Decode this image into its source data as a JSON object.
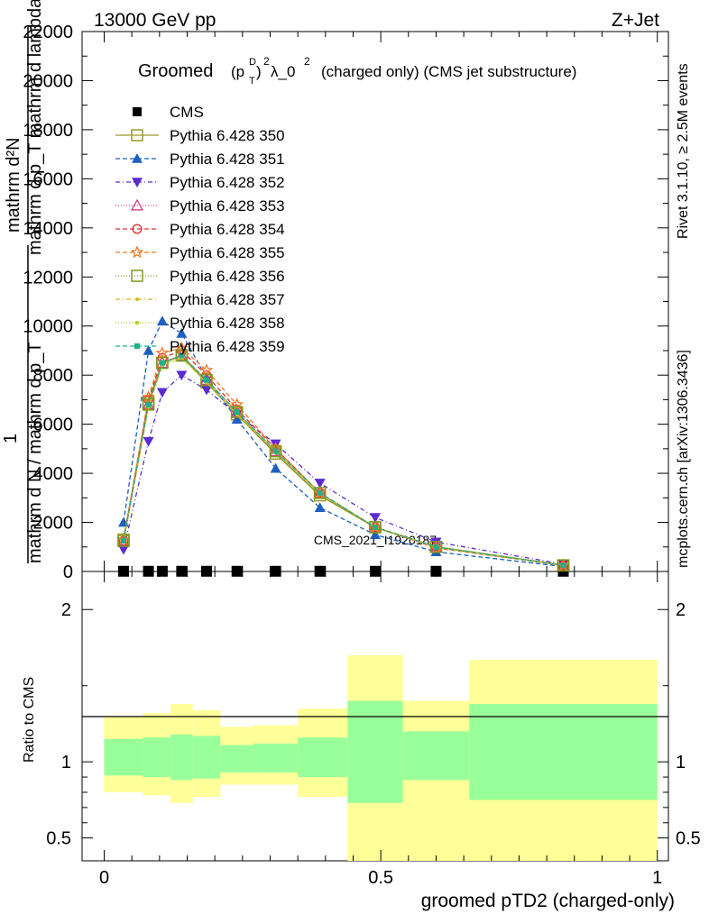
{
  "header": {
    "energy": "13000 GeV pp",
    "process": "Z+Jet"
  },
  "side": {
    "rivet": "Rivet 3.1.10, ≥ 2.5M events",
    "mcplots": "mcplots.cern.ch [arXiv:1306.3436]"
  },
  "title": {
    "prefix": "Groomed",
    "formula": "(p",
    "sup_D": "D",
    "sub_T": "T",
    "close": ")",
    "sq": "2",
    "lambda": "λ_0",
    "lambda_sup": "2",
    "suffix": "(charged only) (CMS jet substructure)"
  },
  "ylabel_main": {
    "line1": "mathrm d²N",
    "line2": "mathrm d p_T mathrm d lambda",
    "one": "1",
    "line3": "mathrm d N / mathrm d p_T"
  },
  "ylabel_ratio": "Ratio to CMS",
  "xlabel": "groomed pTD2 (charged-only)",
  "watermark": "CMS_2021_I1920187",
  "colors": {
    "cms": "#000000",
    "band_inner": "#99ff99",
    "band_outer": "#ffff99"
  },
  "chart_data": [
    {
      "type": "line",
      "panel": "main",
      "xlim": [
        -0.04,
        1.02
      ],
      "ylim": [
        0,
        22000
      ],
      "yticks": [
        2000,
        4000,
        6000,
        8000,
        10000,
        12000,
        14000,
        16000,
        18000,
        20000,
        22000
      ],
      "ytick_labels": [
        "2000",
        "4000",
        "6000",
        "8000",
        "10000",
        "12000",
        "14000",
        "16000",
        "18000",
        "20000",
        "22000"
      ],
      "legend_position": "top-left",
      "x": [
        0.035,
        0.08,
        0.105,
        0.14,
        0.185,
        0.24,
        0.31,
        0.39,
        0.49,
        0.6,
        0.83
      ],
      "series": [
        {
          "name": "CMS",
          "marker": "square",
          "color": "#000000",
          "dash": "",
          "values": [
            8,
            8,
            8,
            8,
            8,
            8,
            8,
            8,
            8,
            8,
            8
          ]
        },
        {
          "name": "Pythia 6.428 350",
          "marker": "open-square",
          "color": "#9a9a2a",
          "dash": "",
          "values": [
            1300,
            6900,
            8500,
            8800,
            7700,
            6400,
            4800,
            3100,
            1800,
            1000,
            250
          ]
        },
        {
          "name": "Pythia 6.428 351",
          "marker": "triangle",
          "color": "#1f5fbf",
          "dash": "5,3",
          "values": [
            2000,
            9000,
            10200,
            9700,
            7900,
            6200,
            4200,
            2600,
            1500,
            800,
            200
          ]
        },
        {
          "name": "Pythia 6.428 352",
          "marker": "down-triangle",
          "color": "#5b2bd0",
          "dash": "5,3,1,3",
          "values": [
            900,
            5300,
            7300,
            8000,
            7400,
            6400,
            5200,
            3600,
            2200,
            1200,
            300
          ]
        },
        {
          "name": "Pythia 6.428 353",
          "marker": "open-triangle",
          "color": "#d0408a",
          "dash": "1,2",
          "values": [
            1200,
            6800,
            8500,
            8800,
            7800,
            6500,
            4900,
            3200,
            1800,
            1000,
            250
          ]
        },
        {
          "name": "Pythia 6.428 354",
          "marker": "open-circle",
          "color": "#e03030",
          "dash": "5,3",
          "values": [
            1250,
            7000,
            8700,
            9000,
            8000,
            6600,
            5000,
            3200,
            1800,
            1000,
            250
          ]
        },
        {
          "name": "Pythia 6.428 355",
          "marker": "open-star",
          "color": "#f07a2a",
          "dash": "5,3",
          "values": [
            1300,
            7100,
            8900,
            9100,
            8200,
            6800,
            5000,
            3200,
            1800,
            950,
            250
          ]
        },
        {
          "name": "Pythia 6.428 356",
          "marker": "open-square",
          "color": "#7a9a1a",
          "dash": "1,2",
          "values": [
            1250,
            6800,
            8500,
            8800,
            7800,
            6500,
            4900,
            3200,
            1800,
            1000,
            250
          ]
        },
        {
          "name": "Pythia 6.428 357",
          "marker": "small-dot",
          "color": "#d4b820",
          "dash": "5,3,1,3",
          "values": [
            1250,
            6700,
            8400,
            8700,
            7700,
            6400,
            4900,
            3200,
            1800,
            1000,
            250
          ]
        },
        {
          "name": "Pythia 6.428 358",
          "marker": "small-dot",
          "color": "#a8d020",
          "dash": "1,2",
          "values": [
            1250,
            6700,
            8400,
            8700,
            7700,
            6400,
            4900,
            3200,
            1800,
            1000,
            250
          ]
        },
        {
          "name": "Pythia 6.428 359",
          "marker": "filled-square",
          "color": "#20b08a",
          "dash": "5,3",
          "values": [
            1250,
            6800,
            8500,
            8800,
            7800,
            6500,
            4900,
            3200,
            1800,
            1000,
            250
          ]
        }
      ]
    },
    {
      "type": "area",
      "panel": "ratio",
      "xlim": [
        -0.04,
        1.02
      ],
      "ylim": [
        0.35,
        2.25
      ],
      "yticks": [
        0.5,
        1,
        2
      ],
      "ytick_labels": [
        "0.5",
        "1",
        "2"
      ],
      "xticks": [
        0,
        0.5,
        1
      ],
      "xtick_labels": [
        "0",
        "0.5",
        "1"
      ],
      "reference_line": 1,
      "bins": [
        {
          "x0": 0.0,
          "x1": 0.07,
          "inner_lo": 0.91,
          "inner_hi": 1.15,
          "outer_lo": 0.8,
          "outer_hi": 1.3
        },
        {
          "x0": 0.07,
          "x1": 0.12,
          "inner_lo": 0.9,
          "inner_hi": 1.16,
          "outer_lo": 0.78,
          "outer_hi": 1.32
        },
        {
          "x0": 0.12,
          "x1": 0.16,
          "inner_lo": 0.88,
          "inner_hi": 1.18,
          "outer_lo": 0.73,
          "outer_hi": 1.38
        },
        {
          "x0": 0.16,
          "x1": 0.21,
          "inner_lo": 0.89,
          "inner_hi": 1.17,
          "outer_lo": 0.77,
          "outer_hi": 1.34
        },
        {
          "x0": 0.21,
          "x1": 0.27,
          "inner_lo": 0.93,
          "inner_hi": 1.11,
          "outer_lo": 0.85,
          "outer_hi": 1.23
        },
        {
          "x0": 0.27,
          "x1": 0.35,
          "inner_lo": 0.93,
          "inner_hi": 1.12,
          "outer_lo": 0.85,
          "outer_hi": 1.24
        },
        {
          "x0": 0.35,
          "x1": 0.44,
          "inner_lo": 0.9,
          "inner_hi": 1.16,
          "outer_lo": 0.77,
          "outer_hi": 1.35
        },
        {
          "x0": 0.44,
          "x1": 0.54,
          "inner_lo": 0.73,
          "inner_hi": 1.4,
          "outer_lo": 0.35,
          "outer_hi": 1.7
        },
        {
          "x0": 0.54,
          "x1": 0.66,
          "inner_lo": 0.88,
          "inner_hi": 1.2,
          "outer_lo": 0.35,
          "outer_hi": 1.4
        },
        {
          "x0": 0.66,
          "x1": 1.0,
          "inner_lo": 0.75,
          "inner_hi": 1.38,
          "outer_lo": 0.35,
          "outer_hi": 1.67
        }
      ]
    }
  ]
}
